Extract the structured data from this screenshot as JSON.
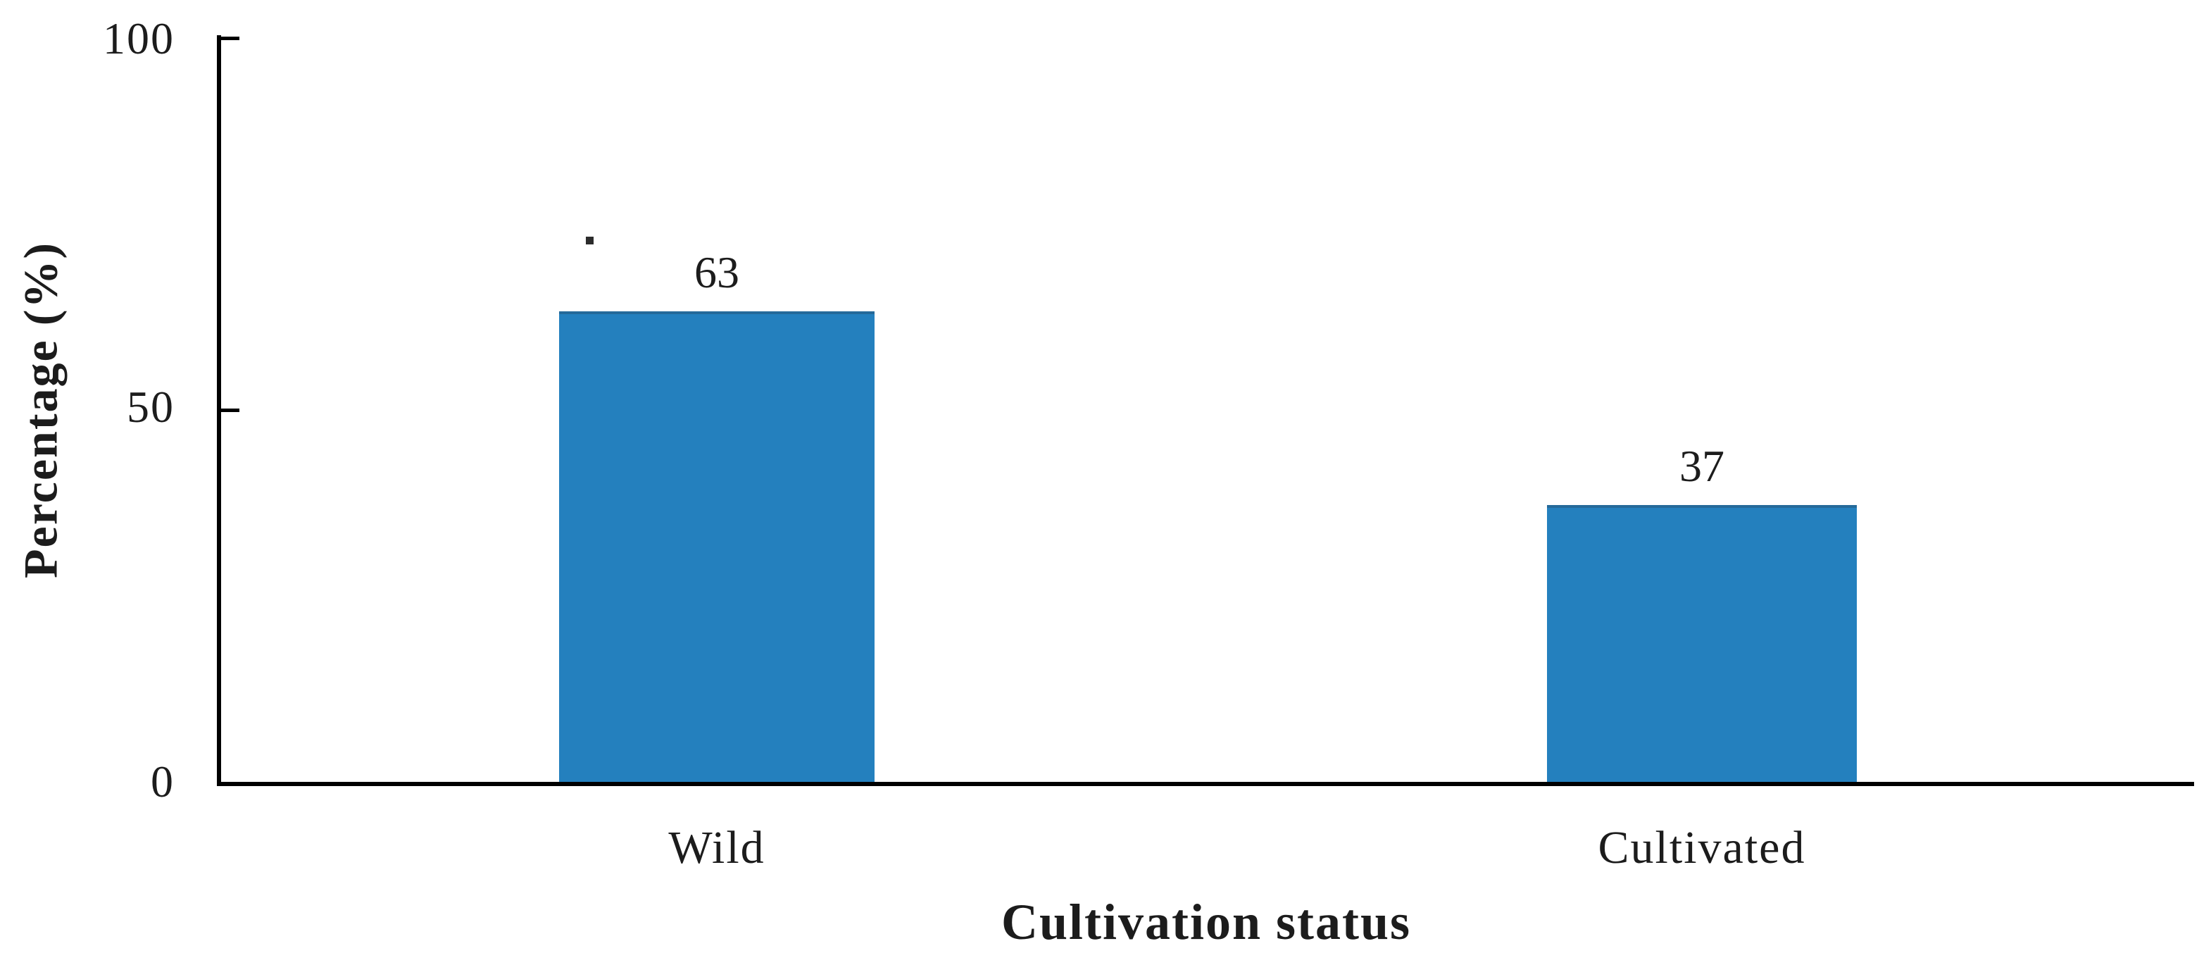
{
  "figure": {
    "background_color": "#ffffff",
    "text_color": "#1c1c1c",
    "axis_color": "#000000"
  },
  "chart_data": {
    "type": "bar",
    "title": "",
    "xlabel": "Cultivation status",
    "ylabel": "Percentage (%)",
    "categories": [
      "Wild",
      "Cultivated"
    ],
    "values": [
      63,
      37
    ],
    "data_labels": [
      "63",
      "37"
    ],
    "bar_color": "#2480BE",
    "ylim": [
      0,
      100
    ],
    "yticks": [
      0,
      50,
      100
    ],
    "ytick_labels": [
      "0",
      "50",
      "100"
    ],
    "grid": false,
    "legend_position": "none"
  }
}
